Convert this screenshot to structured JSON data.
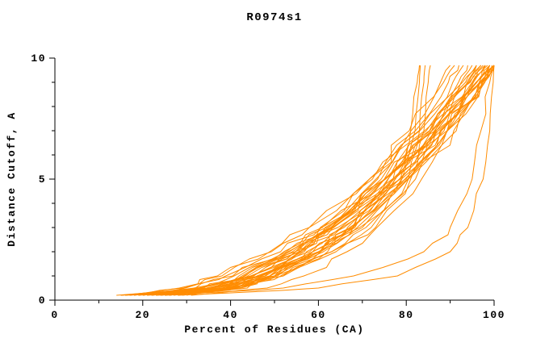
{
  "chart_data": {
    "type": "line",
    "title": "R0974s1",
    "xlabel": "Percent of Residues (CA)",
    "ylabel": "Distance Cutoff, A",
    "xlim": [
      0,
      100
    ],
    "ylim": [
      0,
      10
    ],
    "x_ticks_major": [
      0,
      20,
      40,
      60,
      80,
      100
    ],
    "x_ticks_minor": [
      10,
      30,
      50,
      70,
      90
    ],
    "y_ticks_major": [
      0,
      5,
      10
    ],
    "y_ticks_minor": [
      1,
      2,
      3,
      4,
      6,
      7,
      8,
      9
    ],
    "grid": false,
    "legend": "none",
    "line_color": "#ff8c00",
    "axis_color": "#000000",
    "cutoff_levels_A": [
      0.2,
      0.5,
      1,
      2,
      3,
      5,
      7,
      9,
      9.7
    ],
    "series_percent_at_cutoff": [
      [
        14,
        29.3,
        38.9,
        51.4,
        60.7,
        75.1,
        86.8,
        96.7,
        100
      ],
      [
        15,
        32.7,
        42.6,
        54.7,
        63.5,
        76.8,
        87.3,
        96.1,
        99
      ],
      [
        15,
        36.3,
        46.6,
        58.7,
        67.1,
        79.7,
        89.4,
        97.5,
        100
      ],
      [
        16,
        28.3,
        37.0,
        48.9,
        57.9,
        72.3,
        84.2,
        94.6,
        98
      ],
      [
        16,
        41.0,
        51.4,
        63.0,
        70.8,
        82.1,
        90.8,
        97.8,
        100
      ],
      [
        17,
        31.6,
        40.8,
        52.7,
        61.5,
        75.3,
        86.4,
        95.9,
        99
      ],
      [
        17,
        33.9,
        43.2,
        54.8,
        63.2,
        75.9,
        85.9,
        94.3,
        97
      ],
      [
        18,
        35.3,
        44.9,
        56.8,
        65.3,
        78.4,
        88.6,
        97.2,
        100
      ],
      [
        18,
        29.7,
        38.0,
        49.3,
        57.9,
        71.6,
        82.9,
        92.8,
        96
      ],
      [
        19,
        39.2,
        48.9,
        60.4,
        68.3,
        80.3,
        89.4,
        97.1,
        99.5
      ],
      [
        19,
        33.1,
        41.9,
        53.4,
        61.9,
        75.2,
        85.8,
        95.0,
        98
      ],
      [
        20,
        32.0,
        40.5,
        52.1,
        60.9,
        75.0,
        86.6,
        96.7,
        100
      ],
      [
        20,
        35.8,
        44.6,
        55.5,
        63.3,
        75.2,
        84.6,
        92.5,
        95
      ],
      [
        21,
        40.6,
        50.0,
        61.1,
        68.8,
        80.4,
        89.3,
        96.7,
        99
      ],
      [
        21,
        34.5,
        43.0,
        54.1,
        62.3,
        75.0,
        85.3,
        94.1,
        97
      ],
      [
        22,
        35.9,
        44.6,
        55.9,
        64.4,
        77.5,
        88.0,
        97.0,
        100
      ],
      [
        22,
        37.0,
        45.3,
        55.6,
        63.0,
        74.3,
        83.1,
        90.6,
        93
      ],
      [
        23,
        38.9,
        47.8,
        58.7,
        66.6,
        78.6,
        88.0,
        95.9,
        98.5
      ],
      [
        23,
        41.3,
        50.2,
        60.5,
        67.8,
        78.6,
        86.9,
        93.8,
        96
      ],
      [
        24,
        40.0,
        48.9,
        60.0,
        67.9,
        79.9,
        89.4,
        97.4,
        100
      ],
      [
        24,
        35.9,
        43.4,
        53.1,
        60.4,
        71.6,
        80.7,
        88.5,
        91
      ],
      [
        25,
        36.1,
        43.9,
        54.7,
        62.8,
        75.8,
        86.6,
        96.0,
        99
      ],
      [
        25,
        42.3,
        50.7,
        60.5,
        67.3,
        77.5,
        85.4,
        91.9,
        94
      ],
      [
        26,
        38.8,
        46.9,
        57.3,
        65.1,
        77.2,
        86.9,
        95.3,
        98
      ],
      [
        26,
        39.5,
        47.0,
        56.3,
        62.9,
        73.1,
        81.1,
        87.8,
        90
      ],
      [
        27,
        41.9,
        50.1,
        60.3,
        67.7,
        78.9,
        87.7,
        95.1,
        97.5
      ],
      [
        28,
        39.4,
        46.6,
        55.8,
        62.8,
        73.5,
        82.1,
        89.6,
        92
      ],
      [
        29,
        43.8,
        52.0,
        62.1,
        69.4,
        80.5,
        89.3,
        96.6,
        99
      ],
      [
        30,
        41.7,
        49.1,
        58.7,
        65.8,
        76.9,
        85.8,
        93.5,
        96
      ],
      [
        31,
        48.3,
        56.7,
        66.5,
        73.3,
        83.5,
        91.4,
        97.9,
        100
      ],
      [
        22,
        38,
        48,
        60,
        70,
        79,
        82,
        83,
        83.2
      ],
      [
        24,
        40,
        50,
        63,
        72,
        80.5,
        83,
        84,
        84.3
      ],
      [
        20,
        36,
        46,
        58,
        68,
        77,
        81,
        82.5,
        83
      ],
      [
        26,
        42,
        52,
        64,
        73,
        81,
        84,
        85,
        85.5
      ],
      [
        28,
        60,
        78,
        90,
        94,
        97.5,
        99,
        99.8,
        100
      ],
      [
        25,
        52,
        68,
        84,
        90,
        95,
        97,
        99,
        100
      ]
    ]
  }
}
